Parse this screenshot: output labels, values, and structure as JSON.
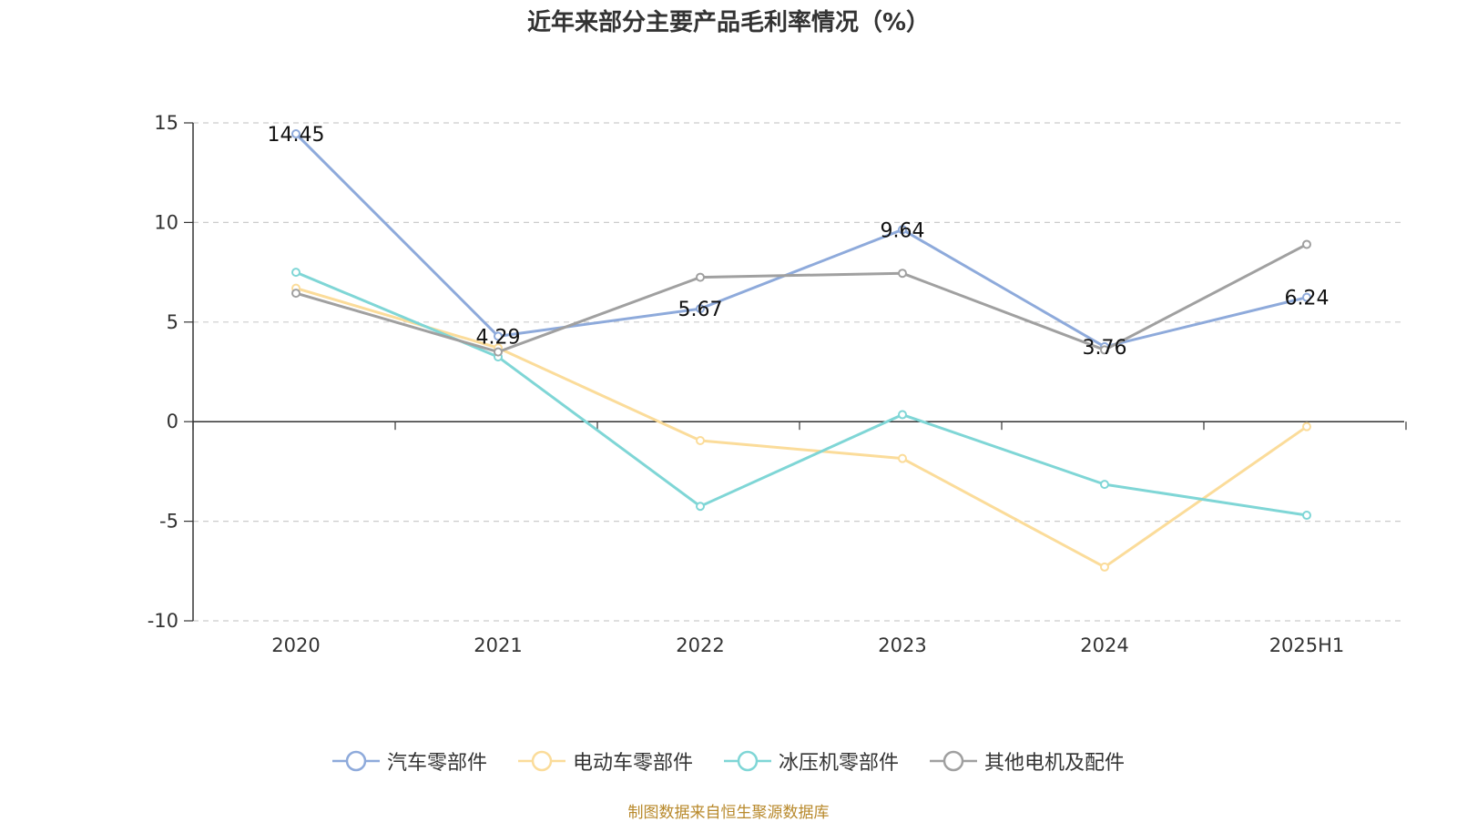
{
  "page": {
    "title": "近年来部分主要产品毛利率情况（%）",
    "source": "制图数据来自恒生聚源数据库"
  },
  "chart_data": {
    "type": "line",
    "title": "近年来部分主要产品毛利率情况（%）",
    "xlabel": "",
    "ylabel": "",
    "x": [
      "2020",
      "2021",
      "2022",
      "2023",
      "2024",
      "2025H1"
    ],
    "ylim": [
      -10,
      15
    ],
    "yticks": [
      15,
      10,
      5,
      0,
      -5,
      -10
    ],
    "grid": true,
    "legend_position": "bottom",
    "series": [
      {
        "name": "汽车零部件",
        "color": "#8eaadb",
        "values": [
          14.45,
          4.29,
          5.67,
          9.64,
          3.76,
          6.24
        ],
        "labels": [
          "14.45",
          "4.29",
          "5.67",
          "9.64",
          "3.76",
          "6.24"
        ]
      },
      {
        "name": "电动车零部件",
        "color": "#fbdc9a",
        "values": [
          6.7,
          3.7,
          -0.95,
          -1.85,
          -7.3,
          -0.25
        ]
      },
      {
        "name": "冰压机零部件",
        "color": "#7fd6d6",
        "values": [
          7.5,
          3.25,
          -4.25,
          0.35,
          -3.15,
          -4.7
        ]
      },
      {
        "name": "其他电机及配件",
        "color": "#a0a0a0",
        "values": [
          6.45,
          3.5,
          7.25,
          7.45,
          3.6,
          8.9
        ]
      }
    ]
  }
}
